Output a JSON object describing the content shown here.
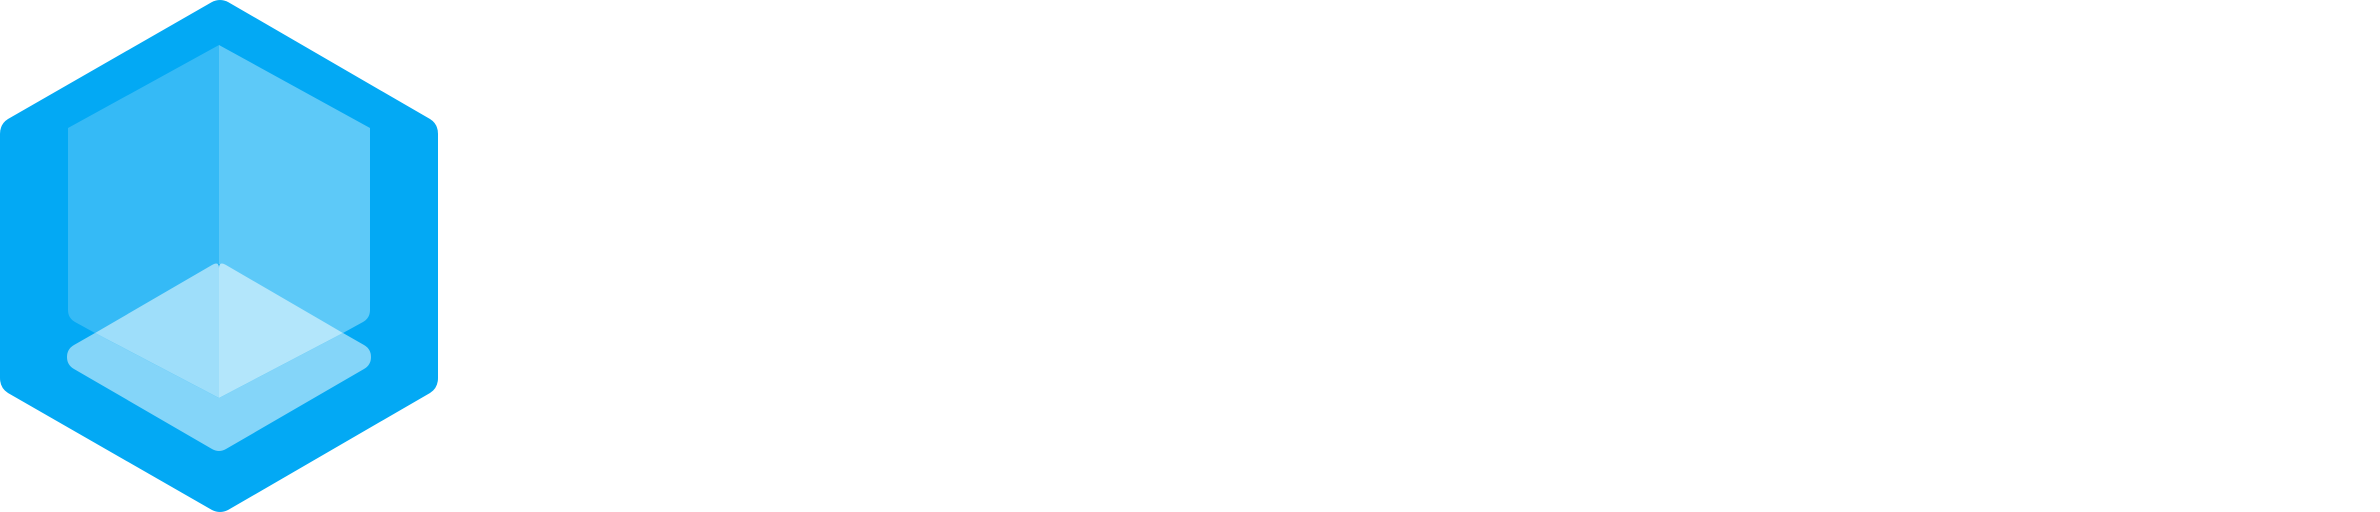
{
  "logo": {
    "icon": "hexagonal-cube-logo-icon",
    "colors": {
      "outer_hexagon": "#03A9F4",
      "left_face": "#35BAF6",
      "right_face": "#5DC9F8",
      "bottom_band": "#84D5F9",
      "bottom_left_facet": "#9EDEFA",
      "bottom_right_facet": "#B3E6FB",
      "background": "#FFFFFF"
    }
  }
}
